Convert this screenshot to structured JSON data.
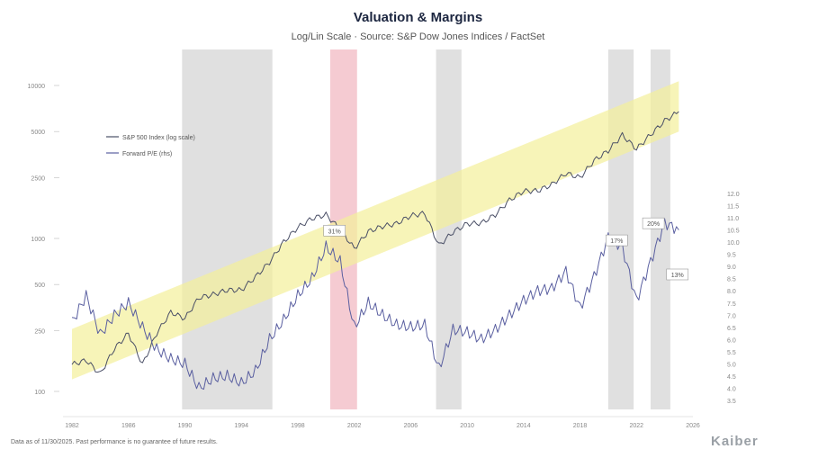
{
  "chart_data": {
    "type": "line",
    "title": "Valuation & Margins",
    "subtitle": "Log/Lin Scale · Source: S&P Dow Jones Indices / FactSet",
    "x_range": [
      1982,
      2026
    ],
    "x_ticks": [
      "1982",
      "1986",
      "1990",
      "1994",
      "1998",
      "2002",
      "2006",
      "2010",
      "2014",
      "2018",
      "2022",
      "2026"
    ],
    "left_axis": {
      "scale": "log",
      "ticks": [
        "100",
        "250",
        "500",
        "1000",
        "2500",
        "5000",
        "10000"
      ]
    },
    "right_axis": {
      "ticks": [
        "12.0",
        "11.5",
        "11.0",
        "10.5",
        "10.0",
        "9.5",
        "9.0",
        "8.5",
        "8.0",
        "7.5",
        "7.0",
        "6.5",
        "6.0",
        "5.5",
        "5.0",
        "4.5",
        "4.0",
        "3.5"
      ]
    },
    "shaded_periods": [
      {
        "start": 1989.8,
        "end": 1996.2,
        "color": "#d6d6d6"
      },
      {
        "start": 2000.3,
        "end": 2002.2,
        "color": "#f2b9c3"
      },
      {
        "start": 2007.8,
        "end": 2009.6,
        "color": "#d6d6d6"
      },
      {
        "start": 2020.0,
        "end": 2021.8,
        "color": "#d6d6d6"
      },
      {
        "start": 2023.0,
        "end": 2024.4,
        "color": "#d6d6d6"
      }
    ],
    "trend_band": {
      "start": [
        1982,
        175
      ],
      "end": [
        2025,
        7300
      ],
      "color": "#f4ef9a"
    },
    "series": [
      {
        "name": "S&P 500",
        "color": "#4a4f66",
        "axis": "left",
        "x": [
          1982,
          1983,
          1984,
          1985,
          1986,
          1987,
          1988,
          1989,
          1990,
          1991,
          1992,
          1993,
          1994,
          1995,
          1996,
          1997,
          1998,
          1999,
          2000,
          2001,
          2002,
          2003,
          2004,
          2005,
          2006,
          2007,
          2008,
          2009,
          2010,
          2011,
          2012,
          2013,
          2014,
          2015,
          2016,
          2017,
          2018,
          2019,
          2020,
          2021,
          2022,
          2023,
          2024,
          2025
        ],
        "values": [
          150,
          160,
          130,
          190,
          240,
          150,
          240,
          330,
          300,
          410,
          430,
          460,
          460,
          560,
          700,
          950,
          1180,
          1350,
          1430,
          1150,
          860,
          1110,
          1200,
          1250,
          1410,
          1460,
          900,
          1100,
          1250,
          1260,
          1430,
          1780,
          2040,
          2050,
          2250,
          2670,
          2500,
          3230,
          3750,
          4750,
          3840,
          4770,
          5880,
          6750
        ]
      },
      {
        "name": "Forward P/E",
        "color": "#5a5fa0",
        "axis": "right",
        "x": [
          1982,
          1983,
          1984,
          1985,
          1986,
          1987,
          1988,
          1989,
          1990,
          1991,
          1992,
          1993,
          1994,
          1995,
          1996,
          1997,
          1998,
          1999,
          2000,
          2001,
          2002,
          2003,
          2004,
          2005,
          2006,
          2007,
          2008,
          2009,
          2010,
          2011,
          2012,
          2013,
          2014,
          2015,
          2016,
          2017,
          2018,
          2019,
          2020,
          2021,
          2022,
          2023,
          2024,
          2025
        ],
        "values": [
          6.7,
          7.8,
          6.2,
          7.0,
          7.5,
          6.5,
          5.6,
          5.2,
          5.0,
          4.0,
          4.4,
          4.5,
          4.2,
          4.7,
          6.0,
          6.8,
          7.8,
          8.5,
          9.8,
          9.2,
          6.5,
          7.5,
          7.0,
          6.6,
          6.5,
          6.6,
          4.8,
          6.4,
          6.3,
          6.0,
          6.4,
          7.0,
          7.6,
          8.0,
          8.1,
          8.8,
          7.3,
          8.6,
          10.2,
          9.8,
          7.6,
          9.2,
          10.8,
          10.5
        ]
      }
    ],
    "annotations": [
      {
        "text": "20%",
        "x": 2023.2,
        "y_right": 10.7
      },
      {
        "text": "31%",
        "x": 2000.6,
        "y_right": 10.4
      },
      {
        "text": "17%",
        "x": 2020.6,
        "y_right": 10.0
      },
      {
        "text": "13%",
        "x": 2024.9,
        "y_right": 8.6
      }
    ],
    "legend": {
      "position": "top-left",
      "entries": [
        "S&P 500 Index (log scale)",
        "Forward P/E (rhs)"
      ]
    }
  },
  "footer": {
    "note": "Data as of 11/30/2025. Past performance is no guarantee of future results.",
    "brand": "Kaiber"
  }
}
